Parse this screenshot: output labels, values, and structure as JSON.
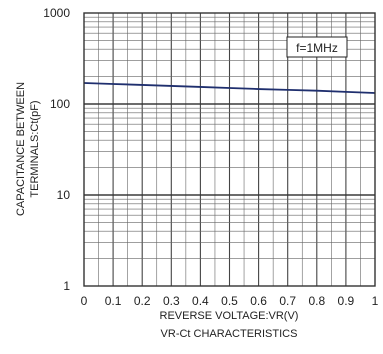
{
  "chart_data": {
    "type": "line",
    "title": "VR-Ct CHARACTERISTICS",
    "xlabel": "REVERSE VOLTAGE:VR(V)",
    "ylabel_line1": "CAPACITANCE BETWEEN",
    "ylabel_line2": "TERMINALS:Ct(pF)",
    "annotation": "f=1MHz",
    "x_scale": "linear",
    "y_scale": "log",
    "xlim": [
      0,
      1
    ],
    "ylim": [
      1,
      1000
    ],
    "grid": true,
    "x_ticks": [
      {
        "value": 0,
        "label": "0"
      },
      {
        "value": 0.1,
        "label": "0.1"
      },
      {
        "value": 0.2,
        "label": "0.2"
      },
      {
        "value": 0.3,
        "label": "0.3"
      },
      {
        "value": 0.4,
        "label": "0.4"
      },
      {
        "value": 0.5,
        "label": "0.5"
      },
      {
        "value": 0.6,
        "label": "0.6"
      },
      {
        "value": 0.7,
        "label": "0.7"
      },
      {
        "value": 0.8,
        "label": "0.8"
      },
      {
        "value": 0.9,
        "label": "0.9"
      },
      {
        "value": 1,
        "label": "1"
      }
    ],
    "y_ticks": [
      {
        "value": 1,
        "label": "1"
      },
      {
        "value": 10,
        "label": "10"
      },
      {
        "value": 100,
        "label": "100"
      },
      {
        "value": 1000,
        "label": "1000"
      }
    ],
    "series": [
      {
        "color": "#1f2f6e",
        "x": [
          0,
          0.1,
          0.2,
          0.3,
          0.4,
          0.5,
          0.6,
          0.7,
          0.8,
          0.9,
          1.0
        ],
        "y": [
          170,
          166,
          162,
          158,
          154,
          150,
          146,
          143,
          140,
          136,
          132
        ]
      }
    ]
  }
}
